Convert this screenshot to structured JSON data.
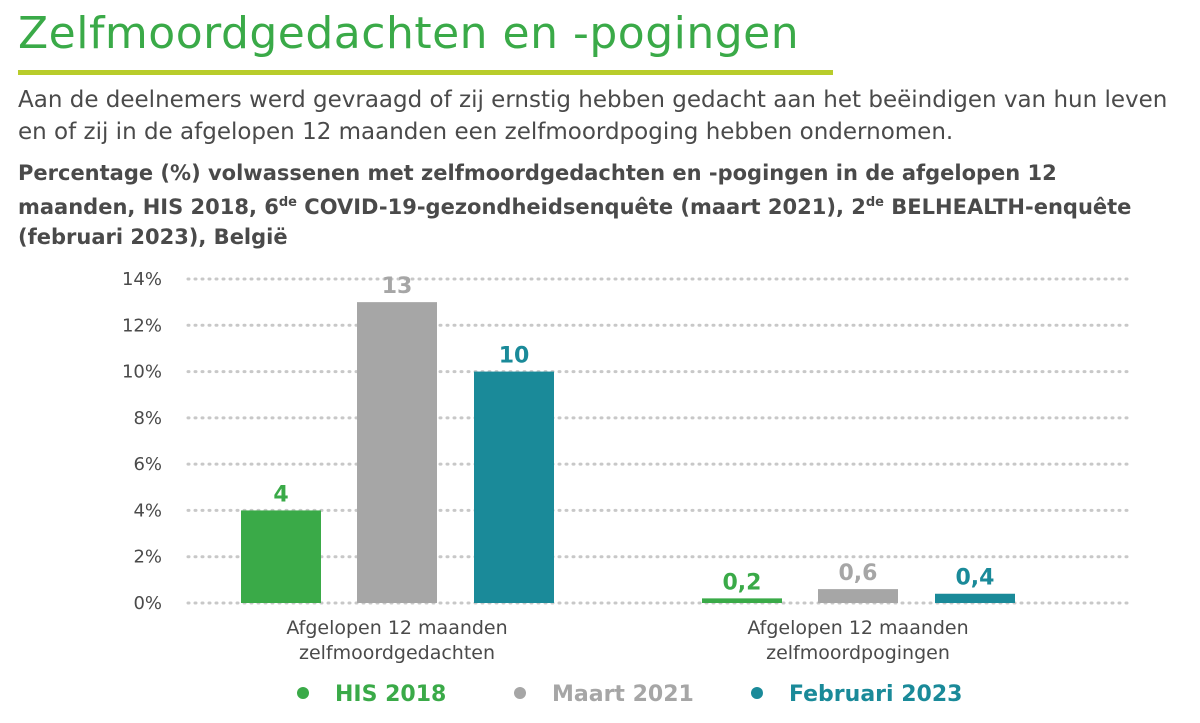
{
  "header": {
    "title": "Zelfmoordgedachten en -pogingen",
    "intro": "Aan de deelnemers werd gevraagd of zij ernstig hebben gedacht aan het beëindigen van hun leven en of zij in de afgelopen 12 maanden een zelfmoordpoging hebben ondernomen."
  },
  "chart_title": {
    "part1": "Percentage (%) volwassenen met zelfmoordgedachten en -pogingen in de afgelopen 12 maanden, HIS 2018, 6",
    "sup1": "de",
    "part2": " COVID-19-gezondheidsenquête (maart 2021), 2",
    "sup2": "de",
    "part3": " BELHEALTH-enquête (februari 2023), België"
  },
  "colors": {
    "title": "#3aaa48",
    "rule": "#b8cc2b",
    "his2018": "#3aaa48",
    "maart2021": "#a6a6a6",
    "februari2023": "#1a8a99",
    "grid": "#c8c8c8"
  },
  "chart_data": {
    "type": "bar",
    "title": "",
    "xlabel": "",
    "ylabel": "",
    "ylim": [
      0,
      14
    ],
    "yticks": [
      0,
      2,
      4,
      6,
      8,
      10,
      12,
      14
    ],
    "ytick_labels": [
      "0%",
      "2%",
      "4%",
      "6%",
      "8%",
      "10%",
      "12%",
      "14%"
    ],
    "grid": "horizontal dotted",
    "legend_position": "bottom",
    "categories": [
      [
        "Afgelopen 12 maanden",
        "zelfmoordgedachten"
      ],
      [
        "Afgelopen 12 maanden",
        "zelfmoordpogingen"
      ]
    ],
    "series": [
      {
        "name": "HIS 2018",
        "values": [
          4,
          0.2
        ],
        "labels": [
          "4",
          "0,2"
        ],
        "color": "#3aaa48"
      },
      {
        "name": "Maart 2021",
        "values": [
          13,
          0.6
        ],
        "labels": [
          "13",
          "0,6"
        ],
        "color": "#a6a6a6"
      },
      {
        "name": "Februari 2023",
        "values": [
          10,
          0.4
        ],
        "labels": [
          "10",
          "0,4"
        ],
        "color": "#1a8a99"
      }
    ]
  }
}
